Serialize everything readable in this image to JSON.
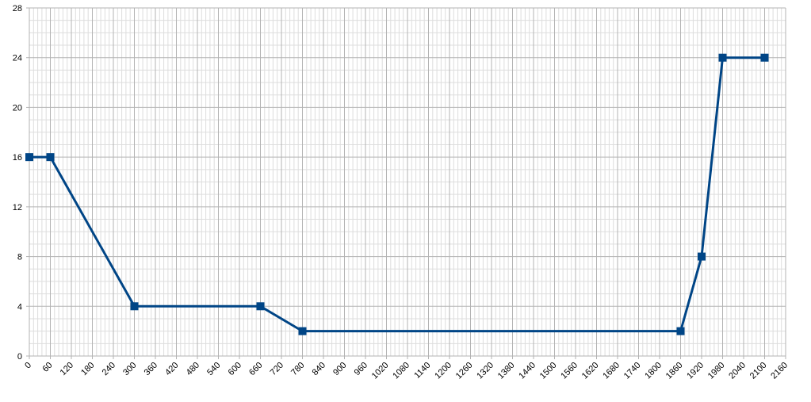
{
  "chart_data": {
    "type": "line",
    "x": [
      0,
      60,
      300,
      660,
      780,
      1860,
      1920,
      1980,
      2100
    ],
    "series": [
      {
        "color": "#004586",
        "values": [
          16,
          16,
          4,
          4,
          2,
          2,
          8,
          24,
          24
        ]
      }
    ],
    "xlim": [
      0,
      2160
    ],
    "xticks": [
      0,
      60,
      120,
      180,
      240,
      300,
      360,
      420,
      480,
      540,
      600,
      660,
      720,
      780,
      840,
      900,
      960,
      1020,
      1080,
      1140,
      1200,
      1260,
      1320,
      1380,
      1440,
      1500,
      1560,
      1620,
      1680,
      1740,
      1800,
      1860,
      1920,
      1980,
      2040,
      2100,
      2160
    ],
    "ylim": [
      0,
      28
    ],
    "yticks": [
      0,
      4,
      8,
      12,
      16,
      20,
      24,
      28
    ],
    "grid": true,
    "minor_grid": true,
    "marker": "square"
  }
}
